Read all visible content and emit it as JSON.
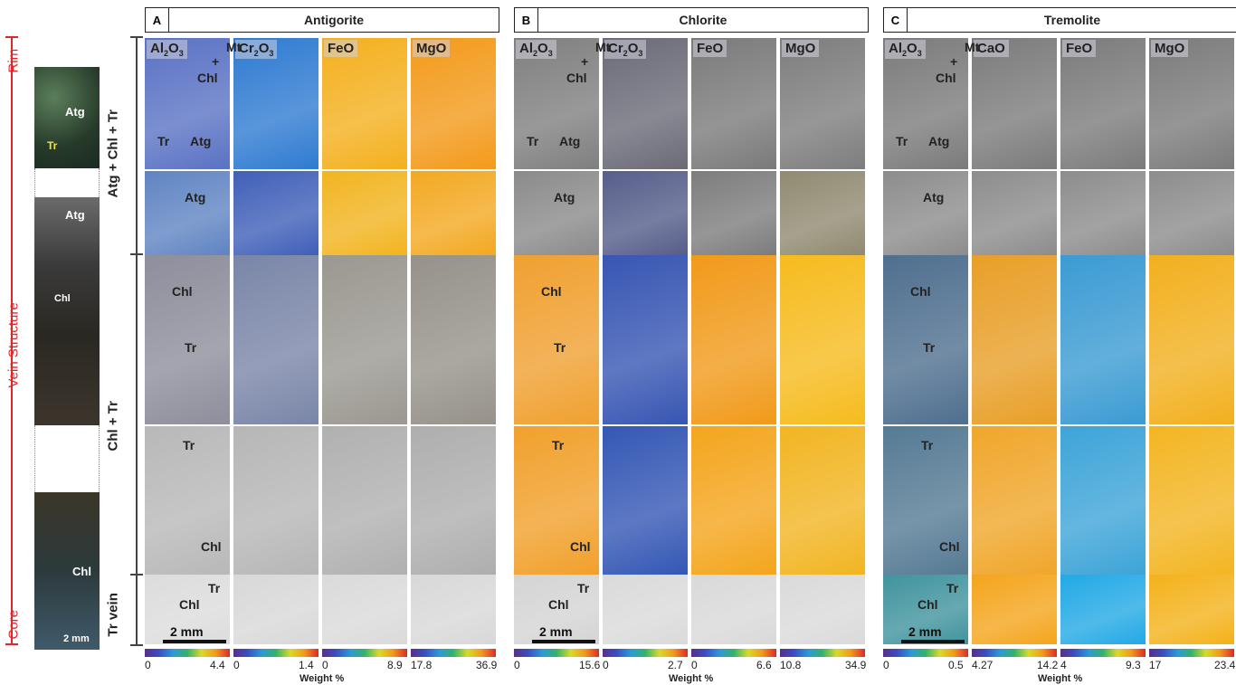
{
  "panels": [
    {
      "letter": "A",
      "title": "Antigorite",
      "maps": [
        {
          "label": "Al",
          "sub": "2",
          "label2": "O",
          "sub2": "3"
        },
        {
          "label": "Cr",
          "sub": "2",
          "label2": "O",
          "sub2": "3"
        },
        {
          "label": "FeO"
        },
        {
          "label": "MgO"
        }
      ],
      "ticks": [
        "0",
        "4.4",
        "0",
        "1.4",
        "0",
        "8.9",
        "17.8",
        "36.9"
      ]
    },
    {
      "letter": "B",
      "title": "Chlorite",
      "maps": [
        {
          "label": "Al",
          "sub": "2",
          "label2": "O",
          "sub2": "3"
        },
        {
          "label": "Cr",
          "sub": "2",
          "label2": "O",
          "sub2": "3"
        },
        {
          "label": "FeO"
        },
        {
          "label": "MgO"
        }
      ],
      "ticks": [
        "0",
        "15.6",
        "0",
        "2.7",
        "0",
        "6.6",
        "10.8",
        "34.9"
      ]
    },
    {
      "letter": "C",
      "title": "Tremolite",
      "maps": [
        {
          "label": "Al",
          "sub": "2",
          "label2": "O",
          "sub2": "3"
        },
        {
          "label": "CaO"
        },
        {
          "label": "FeO"
        },
        {
          "label": "MgO"
        }
      ],
      "ticks": [
        "0",
        "0.5",
        "4.27",
        "14.2",
        "4",
        "9.3",
        "17",
        "23.4"
      ]
    }
  ],
  "weight_label": "Weight %",
  "zone_labels": {
    "upper": "Atg + Chl + Tr",
    "middle": "Chl + Tr",
    "lower": "Tr vein"
  },
  "left_axis": {
    "rim": "Rim",
    "vein": "Vein Structure",
    "core": "Core"
  },
  "mineral_labels": {
    "mt": "Mt",
    "plus": "+",
    "chl": "Chl",
    "tr": "Tr",
    "atg": "Atg"
  },
  "scale": "2 mm",
  "thumb_scale": "2 mm",
  "colors": {
    "red": "#e0262a",
    "antigorite_blue": "#3b5fbf",
    "orange": "#f4a51c",
    "grey": "#8a8a8a",
    "cyan": "#2aa6e0"
  }
}
